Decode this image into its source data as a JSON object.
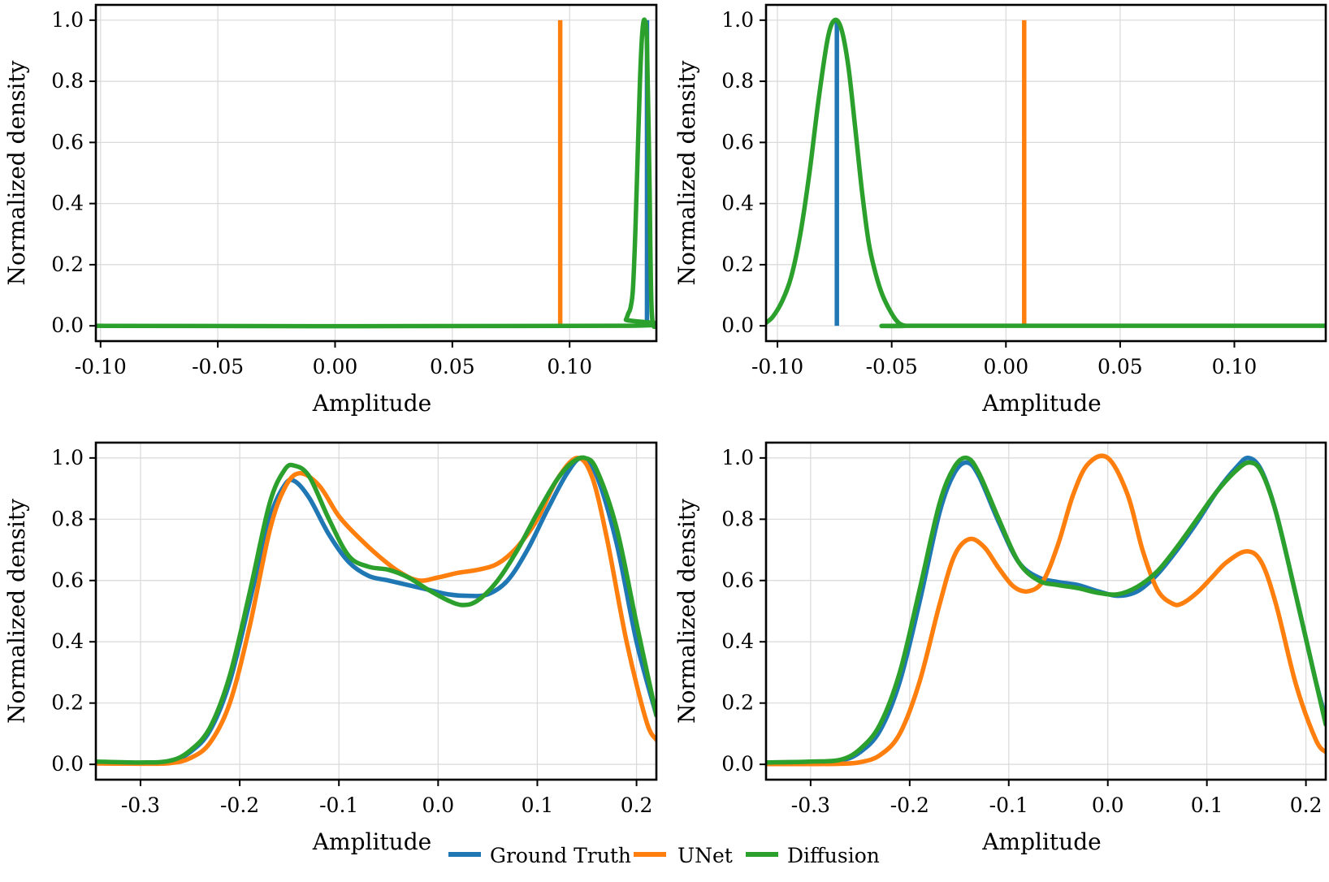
{
  "chart_data": [
    {
      "type": "line",
      "panel": "top-left",
      "xlabel": "Amplitude",
      "ylabel": "Normalized density",
      "xlim": [
        -0.102,
        0.137
      ],
      "ylim": [
        0.0,
        1.0
      ],
      "xticks": [
        -0.1,
        -0.05,
        0.0,
        0.05,
        0.1
      ],
      "xtick_labels": [
        "-0.10",
        "-0.05",
        "0.00",
        "0.05",
        "0.10"
      ],
      "yticks": [
        0.0,
        0.2,
        0.4,
        0.6,
        0.8,
        1.0
      ],
      "ytick_labels": [
        "0.0",
        "0.2",
        "0.4",
        "0.6",
        "0.8",
        "1.0"
      ],
      "grid": true,
      "series": [
        {
          "name": "Ground Truth",
          "color": "#1f77b4",
          "kind": "spike",
          "at": 0.133,
          "x": [],
          "y": []
        },
        {
          "name": "UNet",
          "color": "#ff7f0e",
          "kind": "spike",
          "at": 0.096,
          "x": [],
          "y": []
        },
        {
          "name": "Diffusion",
          "color": "#2ca02c",
          "kind": "curve",
          "x": [
            -0.102,
            0.122,
            0.124,
            0.125,
            0.126,
            0.127,
            0.128,
            0.129,
            0.13,
            0.131,
            0.132,
            0.133,
            0.134,
            0.135,
            0.137
          ],
          "y": [
            0.0,
            0.0,
            0.02,
            0.04,
            0.06,
            0.12,
            0.3,
            0.55,
            0.8,
            0.96,
            1.0,
            0.92,
            0.5,
            0.05,
            0.0
          ]
        }
      ]
    },
    {
      "type": "line",
      "panel": "top-right",
      "xlabel": "Amplitude",
      "ylabel": "Normalized density",
      "xlim": [
        -0.105,
        0.14
      ],
      "ylim": [
        0.0,
        1.0
      ],
      "xticks": [
        -0.1,
        -0.05,
        0.0,
        0.05,
        0.1
      ],
      "xtick_labels": [
        "-0.10",
        "-0.05",
        "0.00",
        "0.05",
        "0.10"
      ],
      "yticks": [
        0.0,
        0.2,
        0.4,
        0.6,
        0.8,
        1.0
      ],
      "ytick_labels": [
        "0.0",
        "0.2",
        "0.4",
        "0.6",
        "0.8",
        "1.0"
      ],
      "grid": true,
      "series": [
        {
          "name": "Ground Truth",
          "color": "#1f77b4",
          "kind": "spike",
          "at": -0.074,
          "x": [],
          "y": []
        },
        {
          "name": "UNet",
          "color": "#ff7f0e",
          "kind": "spike",
          "at": 0.008,
          "x": [],
          "y": []
        },
        {
          "name": "Diffusion",
          "color": "#2ca02c",
          "kind": "curve",
          "x": [
            -0.105,
            -0.102,
            -0.098,
            -0.094,
            -0.09,
            -0.086,
            -0.082,
            -0.078,
            -0.075,
            -0.072,
            -0.069,
            -0.066,
            -0.063,
            -0.06,
            -0.057,
            -0.054,
            -0.05,
            -0.047,
            -0.044,
            -0.04,
            0.14
          ],
          "y": [
            0.01,
            0.03,
            0.08,
            0.16,
            0.3,
            0.5,
            0.74,
            0.94,
            1.0,
            0.97,
            0.85,
            0.65,
            0.44,
            0.27,
            0.17,
            0.1,
            0.04,
            0.01,
            0.0,
            0.0,
            0.0
          ]
        }
      ]
    },
    {
      "type": "line",
      "panel": "bottom-left",
      "xlabel": "Amplitude",
      "ylabel": "Normalized density",
      "xlim": [
        -0.345,
        0.22
      ],
      "ylim": [
        0.0,
        1.0
      ],
      "xticks": [
        -0.3,
        -0.2,
        -0.1,
        0.0,
        0.1,
        0.2
      ],
      "xtick_labels": [
        "-0.3",
        "-0.2",
        "-0.1",
        "0.0",
        "0.1",
        "0.2"
      ],
      "yticks": [
        0.0,
        0.2,
        0.4,
        0.6,
        0.8,
        1.0
      ],
      "ytick_labels": [
        "0.0",
        "0.2",
        "0.4",
        "0.6",
        "0.8",
        "1.0"
      ],
      "grid": true,
      "series": [
        {
          "name": "Ground Truth",
          "color": "#1f77b4",
          "kind": "curve",
          "x": [
            -0.345,
            -0.3,
            -0.27,
            -0.25,
            -0.23,
            -0.21,
            -0.19,
            -0.17,
            -0.155,
            -0.145,
            -0.13,
            -0.11,
            -0.09,
            -0.07,
            -0.05,
            -0.03,
            -0.01,
            0.01,
            0.03,
            0.05,
            0.07,
            0.09,
            0.11,
            0.13,
            0.145,
            0.16,
            0.18,
            0.2,
            0.22
          ],
          "y": [
            0.008,
            0.005,
            0.01,
            0.04,
            0.11,
            0.27,
            0.53,
            0.8,
            0.91,
            0.925,
            0.87,
            0.75,
            0.66,
            0.615,
            0.6,
            0.585,
            0.57,
            0.555,
            0.55,
            0.555,
            0.6,
            0.7,
            0.83,
            0.95,
            1.0,
            0.94,
            0.72,
            0.4,
            0.16
          ]
        },
        {
          "name": "UNet",
          "color": "#ff7f0e",
          "kind": "curve",
          "x": [
            -0.345,
            -0.3,
            -0.27,
            -0.25,
            -0.23,
            -0.21,
            -0.19,
            -0.17,
            -0.155,
            -0.14,
            -0.12,
            -0.1,
            -0.08,
            -0.06,
            -0.04,
            -0.02,
            0.0,
            0.02,
            0.04,
            0.06,
            0.08,
            0.1,
            0.12,
            0.14,
            0.155,
            0.17,
            0.19,
            0.21,
            0.22
          ],
          "y": [
            0.003,
            0.002,
            0.004,
            0.02,
            0.07,
            0.2,
            0.45,
            0.76,
            0.9,
            0.95,
            0.91,
            0.81,
            0.74,
            0.68,
            0.63,
            0.6,
            0.61,
            0.625,
            0.635,
            0.655,
            0.71,
            0.8,
            0.93,
            1.0,
            0.94,
            0.74,
            0.4,
            0.14,
            0.08
          ]
        },
        {
          "name": "Diffusion",
          "color": "#2ca02c",
          "kind": "curve",
          "x": [
            -0.345,
            -0.3,
            -0.27,
            -0.25,
            -0.23,
            -0.21,
            -0.19,
            -0.17,
            -0.155,
            -0.145,
            -0.13,
            -0.11,
            -0.09,
            -0.07,
            -0.05,
            -0.03,
            -0.01,
            0.01,
            0.025,
            0.04,
            0.06,
            0.08,
            0.1,
            0.12,
            0.135,
            0.148,
            0.16,
            0.18,
            0.2,
            0.22
          ],
          "y": [
            0.009,
            0.006,
            0.012,
            0.045,
            0.12,
            0.29,
            0.56,
            0.85,
            0.96,
            0.975,
            0.94,
            0.8,
            0.68,
            0.645,
            0.635,
            0.61,
            0.57,
            0.535,
            0.52,
            0.535,
            0.6,
            0.7,
            0.82,
            0.93,
            0.985,
            1.0,
            0.96,
            0.77,
            0.46,
            0.16
          ]
        }
      ]
    },
    {
      "type": "line",
      "panel": "bottom-right",
      "xlabel": "Amplitude",
      "ylabel": "Normalized density",
      "xlim": [
        -0.345,
        0.22
      ],
      "ylim": [
        0.0,
        1.0
      ],
      "xticks": [
        -0.3,
        -0.2,
        -0.1,
        0.0,
        0.1,
        0.2
      ],
      "xtick_labels": [
        "-0.3",
        "-0.2",
        "-0.1",
        "0.0",
        "0.1",
        "0.2"
      ],
      "yticks": [
        0.0,
        0.2,
        0.4,
        0.6,
        0.8,
        1.0
      ],
      "ytick_labels": [
        "0.0",
        "0.2",
        "0.4",
        "0.6",
        "0.8",
        "1.0"
      ],
      "grid": true,
      "series": [
        {
          "name": "Ground Truth",
          "color": "#1f77b4",
          "kind": "curve",
          "x": [
            -0.345,
            -0.3,
            -0.27,
            -0.25,
            -0.23,
            -0.21,
            -0.19,
            -0.17,
            -0.155,
            -0.142,
            -0.13,
            -0.11,
            -0.09,
            -0.07,
            -0.05,
            -0.03,
            -0.01,
            0.01,
            0.03,
            0.05,
            0.07,
            0.09,
            0.11,
            0.13,
            0.142,
            0.155,
            0.17,
            0.19,
            0.21,
            0.22
          ],
          "y": [
            0.005,
            0.008,
            0.012,
            0.04,
            0.11,
            0.27,
            0.53,
            0.82,
            0.95,
            0.985,
            0.94,
            0.79,
            0.66,
            0.61,
            0.595,
            0.585,
            0.565,
            0.55,
            0.565,
            0.62,
            0.7,
            0.79,
            0.89,
            0.97,
            1.0,
            0.96,
            0.82,
            0.55,
            0.27,
            0.15
          ]
        },
        {
          "name": "UNet",
          "color": "#ff7f0e",
          "kind": "curve",
          "x": [
            -0.345,
            -0.3,
            -0.27,
            -0.25,
            -0.23,
            -0.21,
            -0.19,
            -0.17,
            -0.155,
            -0.14,
            -0.125,
            -0.11,
            -0.095,
            -0.08,
            -0.065,
            -0.05,
            -0.035,
            -0.02,
            0.0,
            0.02,
            0.035,
            0.05,
            0.065,
            0.075,
            0.09,
            0.105,
            0.12,
            0.14,
            0.155,
            0.17,
            0.19,
            0.21,
            0.22
          ],
          "y": [
            0.001,
            0.001,
            0.002,
            0.007,
            0.03,
            0.1,
            0.27,
            0.52,
            0.68,
            0.735,
            0.71,
            0.64,
            0.58,
            0.565,
            0.6,
            0.72,
            0.88,
            0.98,
            1.0,
            0.88,
            0.7,
            0.57,
            0.525,
            0.525,
            0.56,
            0.61,
            0.66,
            0.695,
            0.66,
            0.52,
            0.26,
            0.08,
            0.04
          ]
        },
        {
          "name": "Diffusion",
          "color": "#2ca02c",
          "kind": "curve",
          "x": [
            -0.345,
            -0.3,
            -0.27,
            -0.25,
            -0.23,
            -0.21,
            -0.19,
            -0.17,
            -0.155,
            -0.142,
            -0.13,
            -0.11,
            -0.09,
            -0.07,
            -0.05,
            -0.03,
            -0.01,
            0.01,
            0.03,
            0.05,
            0.07,
            0.09,
            0.11,
            0.13,
            0.143,
            0.155,
            0.17,
            0.19,
            0.21,
            0.22
          ],
          "y": [
            0.006,
            0.009,
            0.015,
            0.05,
            0.13,
            0.3,
            0.57,
            0.85,
            0.97,
            1.0,
            0.95,
            0.8,
            0.66,
            0.6,
            0.585,
            0.575,
            0.56,
            0.555,
            0.58,
            0.63,
            0.71,
            0.8,
            0.89,
            0.96,
            0.985,
            0.955,
            0.82,
            0.55,
            0.27,
            0.13
          ]
        }
      ]
    }
  ],
  "legend": {
    "position": "bottom-center",
    "items": [
      {
        "label": "Ground Truth",
        "color": "#1f77b4"
      },
      {
        "label": "UNet",
        "color": "#ff7f0e"
      },
      {
        "label": "Diffusion",
        "color": "#2ca02c"
      }
    ]
  }
}
